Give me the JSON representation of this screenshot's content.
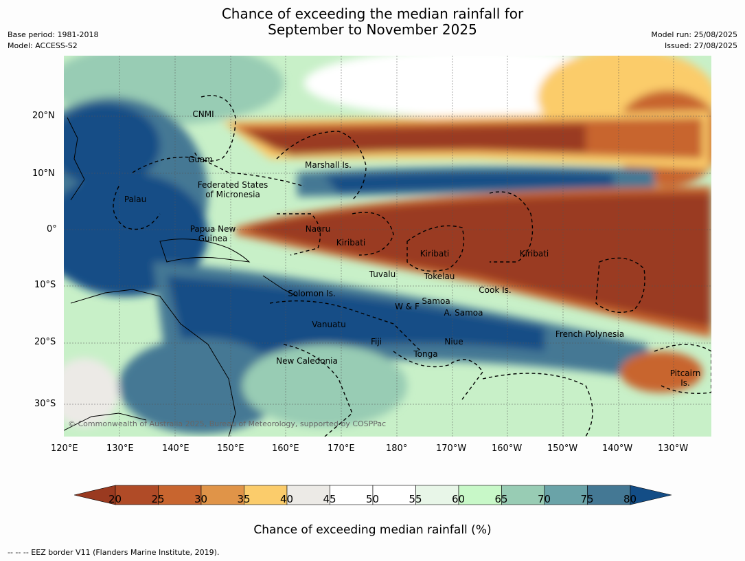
{
  "title": {
    "line1": "Chance of exceeding the median rainfall for",
    "line2": "September to November 2025"
  },
  "meta": {
    "base_period": "Base period: 1981-2018",
    "model": "Model: ACCESS-S2",
    "model_run": "Model run: 25/08/2025",
    "issued": "Issued: 27/08/2025"
  },
  "axes": {
    "lat_ticks": [
      "20°N",
      "10°N",
      "0°",
      "10°S",
      "20°S",
      "30°S"
    ],
    "lon_ticks": [
      "120°E",
      "130°E",
      "140°E",
      "150°E",
      "160°E",
      "170°E",
      "180°",
      "170°W",
      "160°W",
      "150°W",
      "140°W",
      "130°W"
    ]
  },
  "places": {
    "cnmi": "CNMI",
    "guam": "Guam",
    "palau": "Palau",
    "fsm_1": "Federated States",
    "fsm_2": "of Micronesia",
    "marshall": "Marshall Is.",
    "nauru": "Nauru",
    "png_1": "Papua New",
    "png_2": "Guinea",
    "kiribati_w": "Kiribati",
    "kiribati_c": "Kiribati",
    "kiribati_e": "Kiribati",
    "tuvalu": "Tuvalu",
    "tokelau": "Tokelau",
    "cook": "Cook Is.",
    "solomon": "Solomon Is.",
    "wf": "W & F",
    "samoa": "Samoa",
    "asamoa": "A. Samoa",
    "vanuatu": "Vanuatu",
    "fiji": "Fiji",
    "niue": "Niue",
    "tonga": "Tonga",
    "frpoly": "French Polynesia",
    "newcal": "New Caledonia",
    "pitcairn_1": "Pitcairn",
    "pitcairn_2": "Is."
  },
  "copyright": "© Commonwealth of Australia 2025, Bureau of Meteorology, supported by COSPPac",
  "colorbar": {
    "title": "Chance of exceeding median rainfall (%)",
    "ticks": [
      "20",
      "25",
      "30",
      "35",
      "40",
      "45",
      "50",
      "55",
      "60",
      "65",
      "70",
      "75",
      "80"
    ],
    "colors": [
      "#9a3a20",
      "#b04b27",
      "#c8652f",
      "#e09448",
      "#fbcc6b",
      "#eceae6",
      "#ffffff",
      "#ffffff",
      "#e8f6e8",
      "#c8f8c8",
      "#98ccb4",
      "#6aa3a8",
      "#447894",
      "#134d86"
    ]
  },
  "footer": "--  --  -- EEZ border V11 (Flanders Marine Institute, 2019)."
}
